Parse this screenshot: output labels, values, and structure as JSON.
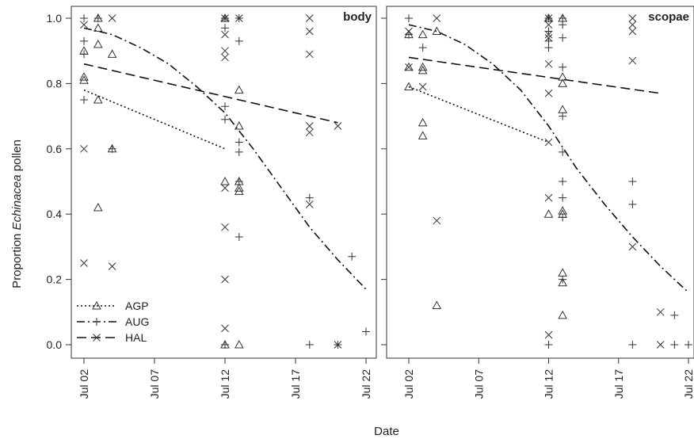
{
  "chart_data": {
    "type": "scatter",
    "ylabel_parts": [
      "Proportion ",
      "Echinacea",
      " pollen"
    ],
    "xlabel": "Date",
    "x_ticks": [
      "Jul 02",
      "Jul 07",
      "Jul 12",
      "Jul 17",
      "Jul 22"
    ],
    "y_ticks": [
      "0.0",
      "0.2",
      "0.4",
      "0.6",
      "0.8",
      "1.0"
    ],
    "ylim": [
      0,
      1
    ],
    "xlim": [
      "Jul 01",
      "Jul 22"
    ],
    "grid": false,
    "legend_position": "bottom-left",
    "legend": [
      {
        "label": "AGP",
        "marker": "triangle",
        "line": "dotted"
      },
      {
        "label": "AUG",
        "marker": "plus",
        "line": "dotdash"
      },
      {
        "label": "HAL",
        "marker": "cross",
        "line": "dashed"
      }
    ],
    "panels": [
      {
        "title": "body",
        "series": [
          {
            "name": "AGP",
            "marker": "triangle",
            "points": [
              [
                "Jul 02",
                0.9
              ],
              [
                "Jul 02",
                0.82
              ],
              [
                "Jul 02",
                0.81
              ],
              [
                "Jul 03",
                1.0
              ],
              [
                "Jul 03",
                0.97
              ],
              [
                "Jul 03",
                0.92
              ],
              [
                "Jul 03",
                0.75
              ],
              [
                "Jul 03",
                0.42
              ],
              [
                "Jul 04",
                0.89
              ],
              [
                "Jul 04",
                0.6
              ],
              [
                "Jul 12",
                1.0
              ],
              [
                "Jul 12",
                0.5
              ],
              [
                "Jul 12",
                0.0
              ],
              [
                "Jul 13",
                0.78
              ],
              [
                "Jul 13",
                0.67
              ],
              [
                "Jul 13",
                0.5
              ],
              [
                "Jul 13",
                0.48
              ],
              [
                "Jul 13",
                0.47
              ],
              [
                "Jul 13",
                0.0
              ]
            ],
            "fit": [
              [
                "Jul 02",
                0.78
              ],
              [
                "Jul 12",
                0.6
              ]
            ]
          },
          {
            "name": "AUG",
            "marker": "plus",
            "points": [
              [
                "Jul 02",
                1.0
              ],
              [
                "Jul 02",
                0.93
              ],
              [
                "Jul 02",
                0.89
              ],
              [
                "Jul 02",
                0.75
              ],
              [
                "Jul 03",
                1.0
              ],
              [
                "Jul 04",
                0.6
              ],
              [
                "Jul 12",
                1.0
              ],
              [
                "Jul 12",
                0.97
              ],
              [
                "Jul 12",
                0.73
              ],
              [
                "Jul 12",
                0.69
              ],
              [
                "Jul 12",
                0.0
              ],
              [
                "Jul 13",
                1.0
              ],
              [
                "Jul 13",
                0.93
              ],
              [
                "Jul 13",
                0.62
              ],
              [
                "Jul 13",
                0.59
              ],
              [
                "Jul 13",
                0.5
              ],
              [
                "Jul 13",
                0.33
              ],
              [
                "Jul 18",
                0.45
              ],
              [
                "Jul 18",
                0.0
              ],
              [
                "Jul 20",
                0.0
              ],
              [
                "Jul 21",
                0.27
              ],
              [
                "Jul 22",
                0.04
              ]
            ],
            "fit": [
              [
                "Jul 02",
                0.97
              ],
              [
                "Jul 04",
                0.95
              ],
              [
                "Jul 06",
                0.91
              ],
              [
                "Jul 08",
                0.86
              ],
              [
                "Jul 10",
                0.79
              ],
              [
                "Jul 12",
                0.71
              ],
              [
                "Jul 14",
                0.6
              ],
              [
                "Jul 16",
                0.48
              ],
              [
                "Jul 18",
                0.36
              ],
              [
                "Jul 20",
                0.26
              ],
              [
                "Jul 22",
                0.17
              ]
            ]
          },
          {
            "name": "HAL",
            "marker": "cross",
            "points": [
              [
                "Jul 02",
                0.98
              ],
              [
                "Jul 02",
                0.6
              ],
              [
                "Jul 02",
                0.25
              ],
              [
                "Jul 04",
                1.0
              ],
              [
                "Jul 04",
                0.24
              ],
              [
                "Jul 12",
                1.0
              ],
              [
                "Jul 12",
                0.95
              ],
              [
                "Jul 12",
                0.9
              ],
              [
                "Jul 12",
                0.88
              ],
              [
                "Jul 12",
                0.48
              ],
              [
                "Jul 12",
                0.36
              ],
              [
                "Jul 12",
                0.2
              ],
              [
                "Jul 12",
                0.05
              ],
              [
                "Jul 13",
                1.0
              ],
              [
                "Jul 18",
                1.0
              ],
              [
                "Jul 18",
                0.96
              ],
              [
                "Jul 18",
                0.89
              ],
              [
                "Jul 18",
                0.67
              ],
              [
                "Jul 18",
                0.65
              ],
              [
                "Jul 18",
                0.43
              ],
              [
                "Jul 20",
                0.67
              ],
              [
                "Jul 20",
                0.0
              ]
            ],
            "fit": [
              [
                "Jul 02",
                0.86
              ],
              [
                "Jul 20",
                0.68
              ]
            ]
          }
        ]
      },
      {
        "title": "scopae",
        "series": [
          {
            "name": "AGP",
            "marker": "triangle",
            "points": [
              [
                "Jul 02",
                0.95
              ],
              [
                "Jul 02",
                0.85
              ],
              [
                "Jul 02",
                0.79
              ],
              [
                "Jul 03",
                0.95
              ],
              [
                "Jul 03",
                0.85
              ],
              [
                "Jul 03",
                0.84
              ],
              [
                "Jul 03",
                0.68
              ],
              [
                "Jul 03",
                0.64
              ],
              [
                "Jul 04",
                0.96
              ],
              [
                "Jul 04",
                0.12
              ],
              [
                "Jul 12",
                1.0
              ],
              [
                "Jul 12",
                0.4
              ],
              [
                "Jul 13",
                1.0
              ],
              [
                "Jul 13",
                0.82
              ],
              [
                "Jul 13",
                0.8
              ],
              [
                "Jul 13",
                0.72
              ],
              [
                "Jul 13",
                0.41
              ],
              [
                "Jul 13",
                0.4
              ],
              [
                "Jul 13",
                0.22
              ],
              [
                "Jul 13",
                0.19
              ],
              [
                "Jul 13",
                0.09
              ]
            ],
            "fit": [
              [
                "Jul 02",
                0.79
              ],
              [
                "Jul 12",
                0.62
              ]
            ]
          },
          {
            "name": "AUG",
            "marker": "plus",
            "points": [
              [
                "Jul 02",
                1.0
              ],
              [
                "Jul 02",
                0.95
              ],
              [
                "Jul 03",
                0.91
              ],
              [
                "Jul 12",
                1.0
              ],
              [
                "Jul 12",
                0.96
              ],
              [
                "Jul 12",
                0.93
              ],
              [
                "Jul 12",
                0.91
              ],
              [
                "Jul 12",
                0.0
              ],
              [
                "Jul 13",
                1.0
              ],
              [
                "Jul 13",
                0.98
              ],
              [
                "Jul 13",
                0.94
              ],
              [
                "Jul 13",
                0.85
              ],
              [
                "Jul 13",
                0.7
              ],
              [
                "Jul 13",
                0.59
              ],
              [
                "Jul 13",
                0.5
              ],
              [
                "Jul 13",
                0.45
              ],
              [
                "Jul 13",
                0.39
              ],
              [
                "Jul 13",
                0.2
              ],
              [
                "Jul 18",
                0.5
              ],
              [
                "Jul 18",
                0.43
              ],
              [
                "Jul 18",
                0.0
              ],
              [
                "Jul 21",
                0.09
              ],
              [
                "Jul 21",
                0.0
              ],
              [
                "Jul 22",
                0.0
              ]
            ],
            "fit": [
              [
                "Jul 02",
                0.98
              ],
              [
                "Jul 04",
                0.96
              ],
              [
                "Jul 06",
                0.92
              ],
              [
                "Jul 08",
                0.86
              ],
              [
                "Jul 10",
                0.78
              ],
              [
                "Jul 12",
                0.67
              ],
              [
                "Jul 14",
                0.54
              ],
              [
                "Jul 16",
                0.43
              ],
              [
                "Jul 18",
                0.33
              ],
              [
                "Jul 20",
                0.24
              ],
              [
                "Jul 22",
                0.16
              ]
            ]
          },
          {
            "name": "HAL",
            "marker": "cross",
            "points": [
              [
                "Jul 02",
                0.96
              ],
              [
                "Jul 02",
                0.85
              ],
              [
                "Jul 03",
                0.79
              ],
              [
                "Jul 04",
                1.0
              ],
              [
                "Jul 04",
                0.38
              ],
              [
                "Jul 12",
                1.0
              ],
              [
                "Jul 12",
                0.98
              ],
              [
                "Jul 12",
                0.95
              ],
              [
                "Jul 12",
                0.94
              ],
              [
                "Jul 12",
                0.86
              ],
              [
                "Jul 12",
                0.77
              ],
              [
                "Jul 12",
                0.62
              ],
              [
                "Jul 12",
                0.45
              ],
              [
                "Jul 12",
                0.03
              ],
              [
                "Jul 18",
                1.0
              ],
              [
                "Jul 18",
                0.98
              ],
              [
                "Jul 18",
                0.96
              ],
              [
                "Jul 18",
                0.87
              ],
              [
                "Jul 18",
                0.3
              ],
              [
                "Jul 20",
                0.1
              ],
              [
                "Jul 20",
                0.0
              ]
            ],
            "fit": [
              [
                "Jul 02",
                0.88
              ],
              [
                "Jul 20",
                0.77
              ]
            ]
          }
        ]
      }
    ]
  }
}
